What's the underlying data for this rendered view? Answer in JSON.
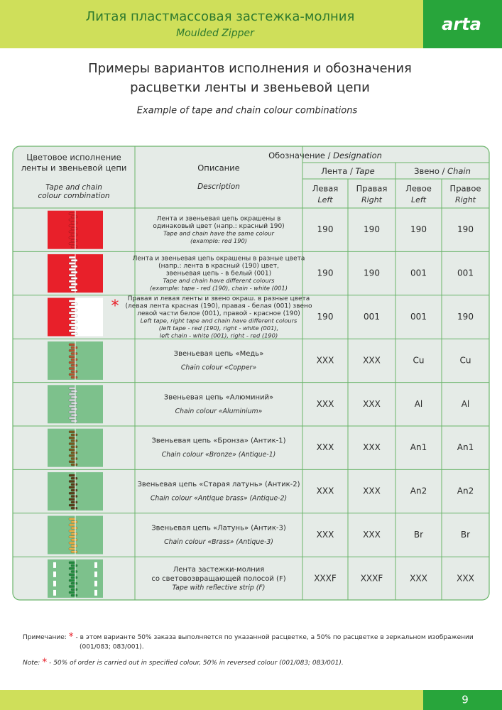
{
  "header": {
    "title_ru": "Литая пластмассовая застежка-молния",
    "title_en": "Moulded Zipper",
    "logo": "arta"
  },
  "heading": {
    "lines": [
      "Примеры вариантов исполнения и обозначения",
      "расцветки ленты и звеньевой цепи"
    ],
    "subtitle": "Example of tape and chain colour combinations"
  },
  "table": {
    "head": {
      "col1_ru": [
        "Цветовое исполнение",
        "ленты и звеньевой цепи"
      ],
      "col1_en": [
        "Tape and chain",
        "colour combination"
      ],
      "col2_ru": "Описание",
      "col2_en": "Description",
      "sep": "/",
      "designation_ru": "Обозначение",
      "designation_en": "Designation",
      "tape_ru": "Лента",
      "tape_en": "Tape",
      "chain_ru": "Звено",
      "chain_en": "Chain",
      "cols": [
        {
          "ru": "Левая",
          "en": "Left"
        },
        {
          "ru": "Правая",
          "en": "Right"
        },
        {
          "ru": "Левое",
          "en": "Left"
        },
        {
          "ru": "Правое",
          "en": "Right"
        }
      ]
    },
    "rows": [
      {
        "desc_ru": [
          "Лента и звеньевая цепь окрашены в",
          "одинаковый цвет (напр.: красный 190)"
        ],
        "desc_en": [
          "Tape and chain have the same colour",
          "(example: red 190)"
        ],
        "values": [
          "190",
          "190",
          "190",
          "190"
        ],
        "tape_left": "#e8202a",
        "tape_right": "#e8202a",
        "chain": "#e8202a"
      },
      {
        "desc_ru": [
          "Лента и звеньевая цепь окрашены в разные цвета",
          "(напр.: лента в красный (190) цвет,",
          "звеньевая цепь - в белый (001)"
        ],
        "desc_en": [
          "Tape and chain have different colours",
          "(example: tape - red (190), chain - white (001)"
        ],
        "values": [
          "190",
          "190",
          "001",
          "001"
        ],
        "tape_left": "#e8202a",
        "tape_right": "#e8202a",
        "chain": "#ffffff"
      },
      {
        "desc_ru": [
          "Правая и левая ленты и звено окраш. в разные цвета",
          "(левая лента красная (190), правая - белая (001) звено",
          "левой части белое (001), правой - красное (190)"
        ],
        "desc_en": [
          "Left tape, right tape and chain have different colours",
          "(left tape - red (190), right - white (001),",
          "left chain - white (001), right - red (190)"
        ],
        "values": [
          "190",
          "001",
          "001",
          "190"
        ],
        "tape_left": "#e8202a",
        "tape_right": "#ffffff",
        "chain": "#ffffff",
        "asterisk": "*"
      },
      {
        "desc_ru": [
          "Звеньевая цепь «Медь»"
        ],
        "desc_en": [
          "Chain colour «Copper»"
        ],
        "values": [
          "XXX",
          "XXX",
          "Cu",
          "Cu"
        ],
        "tape_left": "#7dc18c",
        "tape_right": "#7dc18c",
        "chain": "#b8542e"
      },
      {
        "desc_ru": [
          "Звеньевая цепь «Алюминий»"
        ],
        "desc_en": [
          "Chain colour «Aluminium»"
        ],
        "values": [
          "XXX",
          "XXX",
          "Al",
          "Al"
        ],
        "tape_left": "#7dc18c",
        "tape_right": "#7dc18c",
        "chain": "#d0d4d8"
      },
      {
        "desc_ru": [
          "Звеньевая цепь «Бронза» (Антик-1)"
        ],
        "desc_en": [
          "Chain colour «Bronze» (Antique-1)"
        ],
        "values": [
          "XXX",
          "XXX",
          "An1",
          "An1"
        ],
        "tape_left": "#7dc18c",
        "tape_right": "#7dc18c",
        "chain": "#7a5a1e"
      },
      {
        "desc_ru": [
          "Звеньевая цепь «Старая латунь» (Антик-2)"
        ],
        "desc_en": [
          "Chain colour «Antique brass» (Antique-2)"
        ],
        "values": [
          "XXX",
          "XXX",
          "An2",
          "An2"
        ],
        "tape_left": "#7dc18c",
        "tape_right": "#7dc18c",
        "chain": "#5a3c16"
      },
      {
        "desc_ru": [
          "Звеньевая цепь «Латунь» (Антик-3)"
        ],
        "desc_en": [
          "Chain colour «Brass» (Antique-3)"
        ],
        "values": [
          "XXX",
          "XXX",
          "Br",
          "Br"
        ],
        "tape_left": "#7dc18c",
        "tape_right": "#7dc18c",
        "chain": "#e8b048"
      },
      {
        "desc_ru": [
          "Лента застежки-молния",
          "со световозвращающей полосой (F)"
        ],
        "desc_en": [
          "Tape with reflective strip (F)"
        ],
        "values": [
          "XXXF",
          "XXXF",
          "XXX",
          "XXX"
        ],
        "tape_left": "#7dc18c",
        "tape_right": "#7dc18c",
        "chain": "#1e8c3c",
        "reflective": true
      }
    ]
  },
  "note_ru": {
    "label": "Примечание:",
    "mark": "*",
    "lines": [
      "- в этом варианте 50% заказа выполняется по указанной расцветке, а 50% по расцветке в зеркальном изображении",
      "(001/083; 083/001)."
    ]
  },
  "note_en": {
    "label": "Note:",
    "mark": "*",
    "text": "- 50% of order is carried out in specified colour, 50% in reversed colour (001/083; 083/001)."
  },
  "page_number": "9"
}
